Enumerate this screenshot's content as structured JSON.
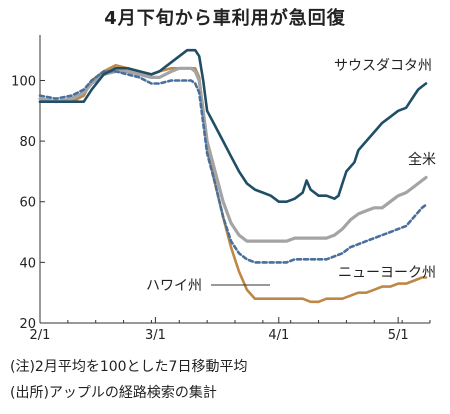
{
  "title": "4月下旬から車利用が急回復",
  "notes": {
    "note1": "(注)2月平均を100とした7日移動平均",
    "note2": "(出所)アップルの経路検索の集計"
  },
  "chart_data": {
    "type": "line",
    "xlim": [
      0,
      98
    ],
    "ylim": [
      20,
      115
    ],
    "yticks": [
      20,
      40,
      60,
      80,
      100
    ],
    "xticks": [
      {
        "x": 0,
        "label": "2/1"
      },
      {
        "x": 29,
        "label": "3/1"
      },
      {
        "x": 60,
        "label": "4/1"
      },
      {
        "x": 90,
        "label": "5/1"
      }
    ],
    "grid": false,
    "series": [
      {
        "name": "サウスダコタ州",
        "color": "#1f4e66",
        "dash": "solid",
        "x": [
          0,
          4,
          8,
          11,
          13,
          16,
          19,
          22,
          25,
          28,
          30,
          33,
          35,
          37,
          39,
          40,
          41,
          42,
          44,
          46,
          48,
          50,
          52,
          54,
          56,
          58,
          60,
          62,
          64,
          66,
          67,
          68,
          70,
          72,
          74,
          75,
          76,
          77,
          79,
          80,
          82,
          84,
          86,
          88,
          90,
          92,
          93,
          94,
          95,
          96,
          97
        ],
        "values": [
          93,
          93,
          93,
          93,
          97,
          102,
          104,
          104,
          103,
          102,
          103,
          106,
          108,
          110,
          110,
          108,
          100,
          90,
          85,
          80,
          75,
          70,
          66,
          64,
          63,
          62,
          60,
          60,
          61,
          63,
          67,
          64,
          62,
          62,
          61,
          62,
          66,
          70,
          73,
          77,
          80,
          83,
          86,
          88,
          90,
          91,
          93,
          95,
          97,
          98,
          99
        ]
      },
      {
        "name": "全米",
        "color": "#a4a4a4",
        "dash": "solid",
        "x": [
          0,
          4,
          8,
          11,
          13,
          16,
          19,
          22,
          25,
          28,
          30,
          33,
          35,
          38,
          39,
          40,
          41,
          42,
          44,
          46,
          48,
          50,
          52,
          54,
          56,
          58,
          60,
          62,
          64,
          66,
          68,
          70,
          72,
          74,
          76,
          78,
          80,
          82,
          84,
          86,
          88,
          90,
          92,
          94,
          96,
          97
        ],
        "values": [
          94,
          93,
          94,
          96,
          99,
          102,
          103,
          103,
          102,
          101,
          101,
          103,
          104,
          104,
          103,
          100,
          90,
          80,
          70,
          60,
          53,
          49,
          47,
          47,
          47,
          47,
          47,
          47,
          48,
          48,
          48,
          48,
          48,
          49,
          51,
          54,
          56,
          57,
          58,
          58,
          60,
          62,
          63,
          65,
          67,
          68
        ]
      },
      {
        "name": "ニューヨーク州",
        "color": "#4a6f9a",
        "dash": "dashed",
        "x": [
          0,
          4,
          8,
          11,
          13,
          16,
          19,
          22,
          25,
          28,
          30,
          33,
          35,
          38,
          39,
          40,
          41,
          42,
          44,
          46,
          48,
          50,
          52,
          54,
          56,
          58,
          60,
          62,
          64,
          66,
          68,
          70,
          72,
          74,
          76,
          78,
          80,
          82,
          84,
          86,
          88,
          90,
          92,
          94,
          96,
          97
        ],
        "values": [
          95,
          94,
          95,
          97,
          100,
          103,
          103,
          102,
          101,
          99,
          99,
          100,
          100,
          100,
          99,
          96,
          86,
          76,
          66,
          55,
          47,
          43,
          41,
          40,
          40,
          40,
          40,
          40,
          41,
          41,
          41,
          41,
          41,
          42,
          43,
          45,
          46,
          47,
          48,
          49,
          50,
          51,
          52,
          55,
          58,
          59
        ]
      },
      {
        "name": "ハワイ州",
        "color": "#bf8747",
        "dash": "solid",
        "x": [
          0,
          4,
          8,
          11,
          13,
          16,
          19,
          22,
          25,
          28,
          30,
          33,
          35,
          38,
          39,
          40,
          41,
          42,
          44,
          46,
          48,
          50,
          52,
          54,
          56,
          58,
          60,
          62,
          64,
          66,
          68,
          70,
          72,
          74,
          76,
          78,
          80,
          82,
          84,
          86,
          88,
          90,
          92,
          94,
          96,
          97
        ],
        "values": [
          93,
          93,
          93,
          95,
          100,
          103,
          105,
          104,
          103,
          102,
          103,
          104,
          104,
          104,
          104,
          101,
          90,
          78,
          66,
          55,
          45,
          37,
          31,
          28,
          28,
          28,
          28,
          28,
          28,
          28,
          27,
          27,
          28,
          28,
          28,
          29,
          30,
          30,
          31,
          32,
          32,
          33,
          33,
          34,
          35,
          35
        ]
      }
    ],
    "labels": [
      {
        "text": "サウスダコタ州",
        "series": "サウスダコタ州"
      },
      {
        "text": "全米",
        "series": "全米"
      },
      {
        "text": "ニューヨーク州",
        "series": "ニューヨーク州"
      },
      {
        "text": "ハワイ州",
        "series": "ハワイ州"
      }
    ]
  }
}
